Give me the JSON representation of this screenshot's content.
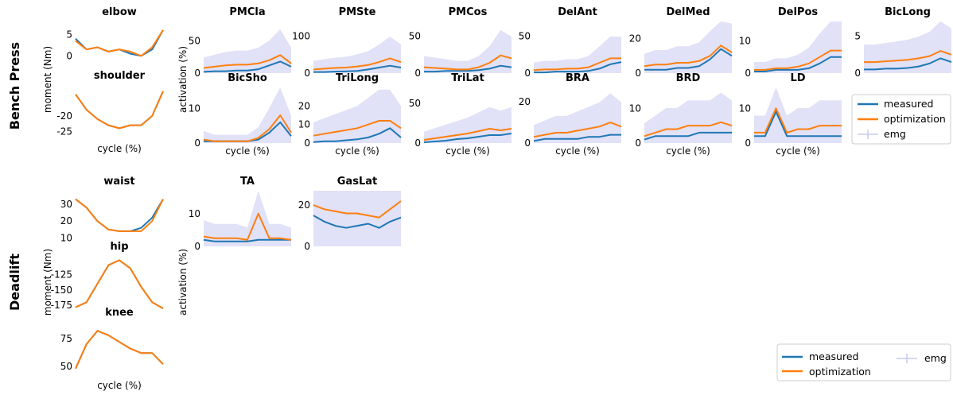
{
  "sections": {
    "top": "Bench Press",
    "bottom": "Deadlift"
  },
  "axis_labels": {
    "moment": "moment (Nm)",
    "activation": "activation (%)",
    "cycle": "cycle (%)"
  },
  "legend": {
    "measured": "measured",
    "optimization": "optimization",
    "emg": "emg"
  },
  "colors": {
    "measured": "#1f77b4",
    "optimization": "#ff7f0e",
    "emg": "#c8c8f0"
  },
  "chart_data": [
    {
      "type": "line",
      "title": "elbow",
      "ylim": [
        -4,
        8
      ],
      "yticks": [
        0,
        5
      ],
      "x": [
        0,
        12.5,
        25,
        37.5,
        50,
        62.5,
        75,
        87.5,
        100
      ],
      "series": [
        {
          "name": "measured",
          "values": [
            4,
            1.5,
            2,
            1,
            1.5,
            0.5,
            0,
            1.5,
            6
          ]
        },
        {
          "name": "optimization",
          "values": [
            3.5,
            1.5,
            2,
            1,
            1.5,
            1,
            0,
            2,
            6
          ]
        }
      ]
    },
    {
      "type": "line",
      "title": "shoulder",
      "ylim": [
        -28,
        -10
      ],
      "yticks": [
        -20,
        -25
      ],
      "x": [
        0,
        12.5,
        25,
        37.5,
        50,
        62.5,
        75,
        87.5,
        100
      ],
      "series": [
        {
          "name": "measured",
          "values": [
            -13,
            -18,
            -21,
            -23,
            -24,
            -23,
            -23,
            -20,
            -12
          ]
        },
        {
          "name": "optimization",
          "values": [
            -13,
            -18,
            -21,
            -23,
            -24,
            -23,
            -23,
            -20,
            -12
          ]
        }
      ]
    },
    {
      "type": "line",
      "title": "PMCla",
      "ylim": [
        0,
        80
      ],
      "yticks": [
        0,
        50
      ],
      "x": [
        0,
        12.5,
        25,
        37.5,
        50,
        62.5,
        75,
        87.5,
        100
      ],
      "series": [
        {
          "name": "measured",
          "values": [
            2,
            3,
            3,
            4,
            4,
            6,
            12,
            18,
            10
          ]
        },
        {
          "name": "optimization",
          "values": [
            8,
            10,
            12,
            13,
            13,
            15,
            20,
            28,
            15
          ]
        }
      ]
    },
    {
      "type": "line",
      "title": "PMSte",
      "ylim": [
        0,
        140
      ],
      "yticks": [
        0,
        100
      ],
      "x": [
        0,
        12.5,
        25,
        37.5,
        50,
        62.5,
        75,
        87.5,
        100
      ],
      "series": [
        {
          "name": "measured",
          "values": [
            3,
            3,
            4,
            5,
            6,
            10,
            15,
            20,
            15
          ]
        },
        {
          "name": "optimization",
          "values": [
            10,
            12,
            14,
            15,
            18,
            22,
            30,
            40,
            30
          ]
        }
      ]
    },
    {
      "type": "line",
      "title": "PMCos",
      "ylim": [
        0,
        70
      ],
      "yticks": [
        0,
        50
      ],
      "x": [
        0,
        12.5,
        25,
        37.5,
        50,
        62.5,
        75,
        87.5,
        100
      ],
      "series": [
        {
          "name": "measured",
          "values": [
            2,
            2,
            3,
            3,
            3,
            4,
            6,
            10,
            8
          ]
        },
        {
          "name": "optimization",
          "values": [
            8,
            7,
            6,
            5,
            5,
            8,
            14,
            24,
            20
          ]
        }
      ]
    },
    {
      "type": "line",
      "title": "DelAnt",
      "ylim": [
        0,
        70
      ],
      "yticks": [
        0,
        50
      ],
      "x": [
        0,
        12.5,
        25,
        37.5,
        50,
        62.5,
        75,
        87.5,
        100
      ],
      "series": [
        {
          "name": "measured",
          "values": [
            1,
            1,
            2,
            2,
            2,
            3,
            6,
            12,
            15
          ]
        },
        {
          "name": "optimization",
          "values": [
            4,
            5,
            5,
            6,
            6,
            8,
            14,
            20,
            20
          ]
        }
      ]
    },
    {
      "type": "line",
      "title": "DelMed",
      "ylim": [
        0,
        30
      ],
      "yticks": [
        0,
        20
      ],
      "x": [
        0,
        12.5,
        25,
        37.5,
        50,
        62.5,
        75,
        87.5,
        100
      ],
      "series": [
        {
          "name": "measured",
          "values": [
            2,
            2,
            2,
            3,
            3,
            4,
            8,
            14,
            10
          ]
        },
        {
          "name": "optimization",
          "values": [
            4,
            5,
            5,
            6,
            6,
            7,
            10,
            16,
            12
          ]
        }
      ]
    },
    {
      "type": "line",
      "title": "DelPos",
      "ylim": [
        0,
        16
      ],
      "yticks": [
        0,
        10
      ],
      "x": [
        0,
        12.5,
        25,
        37.5,
        50,
        62.5,
        75,
        87.5,
        100
      ],
      "series": [
        {
          "name": "measured",
          "values": [
            0.5,
            0.5,
            1,
            1,
            1,
            1.5,
            3,
            5,
            5
          ]
        },
        {
          "name": "optimization",
          "values": [
            1,
            1,
            1.5,
            1.5,
            2,
            3,
            5,
            7,
            7
          ]
        }
      ]
    },
    {
      "type": "line",
      "title": "BicLong",
      "ylim": [
        0,
        7
      ],
      "yticks": [
        0,
        5
      ],
      "x": [
        0,
        12.5,
        25,
        37.5,
        50,
        62.5,
        75,
        87.5,
        100
      ],
      "series": [
        {
          "name": "measured",
          "values": [
            0.5,
            0.5,
            0.6,
            0.6,
            0.7,
            0.9,
            1.3,
            2,
            1.5
          ]
        },
        {
          "name": "optimization",
          "values": [
            1.5,
            1.5,
            1.6,
            1.7,
            1.8,
            2,
            2.3,
            3,
            2.5
          ]
        }
      ]
    },
    {
      "type": "line",
      "title": "BicSho",
      "ylim": [
        0,
        16
      ],
      "yticks": [
        0,
        10
      ],
      "x": [
        0,
        12.5,
        25,
        37.5,
        50,
        62.5,
        75,
        87.5,
        100
      ],
      "series": [
        {
          "name": "measured",
          "values": [
            0.5,
            0.5,
            0.5,
            0.5,
            0.5,
            1,
            3,
            6,
            2
          ]
        },
        {
          "name": "optimization",
          "values": [
            1,
            0.5,
            0.5,
            0.5,
            0.5,
            1.5,
            4,
            8,
            3
          ]
        }
      ]
    },
    {
      "type": "line",
      "title": "TriLong",
      "ylim": [
        0,
        30
      ],
      "yticks": [
        0,
        10,
        20
      ],
      "x": [
        0,
        12.5,
        25,
        37.5,
        50,
        62.5,
        75,
        87.5,
        100
      ],
      "series": [
        {
          "name": "measured",
          "values": [
            0.5,
            1,
            1,
            1.5,
            2,
            3,
            5,
            8,
            3
          ]
        },
        {
          "name": "optimization",
          "values": [
            4,
            5,
            6,
            7,
            8,
            10,
            12,
            12,
            8
          ]
        }
      ]
    },
    {
      "type": "line",
      "title": "TriLat",
      "ylim": [
        0,
        70
      ],
      "yticks": [
        0,
        50
      ],
      "x": [
        0,
        12.5,
        25,
        37.5,
        50,
        62.5,
        75,
        87.5,
        100
      ],
      "series": [
        {
          "name": "measured",
          "values": [
            1,
            2,
            3,
            5,
            6,
            8,
            10,
            10,
            12
          ]
        },
        {
          "name": "optimization",
          "values": [
            4,
            6,
            8,
            10,
            12,
            15,
            18,
            16,
            18
          ]
        }
      ]
    },
    {
      "type": "line",
      "title": "BRA",
      "ylim": [
        0,
        27
      ],
      "yticks": [
        0,
        20
      ],
      "x": [
        0,
        12.5,
        25,
        37.5,
        50,
        62.5,
        75,
        87.5,
        100
      ],
      "series": [
        {
          "name": "measured",
          "values": [
            1,
            2,
            2,
            2,
            2,
            3,
            3,
            4,
            4
          ]
        },
        {
          "name": "optimization",
          "values": [
            3,
            4,
            5,
            5,
            6,
            7,
            8,
            10,
            8
          ]
        }
      ]
    },
    {
      "type": "line",
      "title": "BRD",
      "ylim": [
        0,
        16
      ],
      "yticks": [
        0,
        10
      ],
      "x": [
        0,
        12.5,
        25,
        37.5,
        50,
        62.5,
        75,
        87.5,
        100
      ],
      "series": [
        {
          "name": "measured",
          "values": [
            1,
            2,
            2,
            2,
            2,
            3,
            3,
            3,
            3
          ]
        },
        {
          "name": "optimization",
          "values": [
            2,
            3,
            4,
            4,
            5,
            5,
            5,
            6,
            5
          ]
        }
      ]
    },
    {
      "type": "line",
      "title": "LD",
      "ylim": [
        0,
        16
      ],
      "yticks": [
        0,
        10
      ],
      "x": [
        0,
        12.5,
        25,
        37.5,
        50,
        62.5,
        75,
        87.5,
        100
      ],
      "series": [
        {
          "name": "measured",
          "values": [
            2,
            2,
            9,
            2,
            2,
            2,
            2,
            2,
            2
          ]
        },
        {
          "name": "optimization",
          "values": [
            3,
            3,
            10,
            3,
            4,
            4,
            5,
            5,
            5
          ]
        }
      ]
    },
    {
      "type": "line",
      "title": "waist",
      "ylim": [
        5,
        38
      ],
      "yticks": [
        30,
        20,
        10
      ],
      "x": [
        0,
        12.5,
        25,
        37.5,
        50,
        62.5,
        75,
        87.5,
        100
      ],
      "series": [
        {
          "name": "measured",
          "values": [
            33,
            28,
            20,
            15,
            14,
            14,
            16,
            22,
            33
          ]
        },
        {
          "name": "optimization",
          "values": [
            33,
            28,
            20,
            15,
            14,
            14,
            14,
            20,
            33
          ]
        }
      ]
    },
    {
      "type": "line",
      "title": "hip",
      "ylim": [
        -185,
        -95
      ],
      "yticks": [
        -125,
        -150,
        -175
      ],
      "x": [
        0,
        12.5,
        25,
        37.5,
        50,
        62.5,
        75,
        87.5,
        100
      ],
      "series": [
        {
          "name": "measured",
          "values": [
            -178,
            -170,
            -140,
            -110,
            -102,
            -115,
            -145,
            -170,
            -180
          ]
        },
        {
          "name": "optimization",
          "values": [
            -178,
            -170,
            -140,
            -110,
            -102,
            -115,
            -145,
            -170,
            -180
          ]
        }
      ]
    },
    {
      "type": "line",
      "title": "knee",
      "ylim": [
        40,
        90
      ],
      "yticks": [
        75,
        50
      ],
      "x": [
        0,
        12.5,
        25,
        37.5,
        50,
        62.5,
        75,
        87.5,
        100
      ],
      "series": [
        {
          "name": "measured",
          "values": [
            48,
            70,
            82,
            78,
            72,
            66,
            62,
            62,
            52
          ]
        },
        {
          "name": "optimization",
          "values": [
            48,
            70,
            82,
            78,
            72,
            66,
            62,
            62,
            52
          ]
        }
      ]
    },
    {
      "type": "line",
      "title": "TA",
      "ylim": [
        0,
        17
      ],
      "yticks": [
        0,
        10
      ],
      "x": [
        0,
        12.5,
        25,
        37.5,
        50,
        62.5,
        75,
        87.5,
        100
      ],
      "series": [
        {
          "name": "measured",
          "values": [
            2,
            1.5,
            1.5,
            1.5,
            1.5,
            2,
            2,
            2,
            2
          ]
        },
        {
          "name": "optimization",
          "values": [
            3,
            2.5,
            2.5,
            2.5,
            2,
            10,
            2.5,
            2.5,
            2
          ]
        }
      ]
    },
    {
      "type": "line",
      "title": "GasLat",
      "ylim": [
        0,
        27
      ],
      "yticks": [
        0,
        20
      ],
      "x": [
        0,
        12.5,
        25,
        37.5,
        50,
        62.5,
        75,
        87.5,
        100
      ],
      "series": [
        {
          "name": "measured",
          "values": [
            15,
            12,
            10,
            9,
            10,
            11,
            9,
            12,
            14
          ]
        },
        {
          "name": "optimization",
          "values": [
            20,
            18,
            17,
            16,
            16,
            15,
            14,
            18,
            22
          ]
        }
      ]
    }
  ]
}
